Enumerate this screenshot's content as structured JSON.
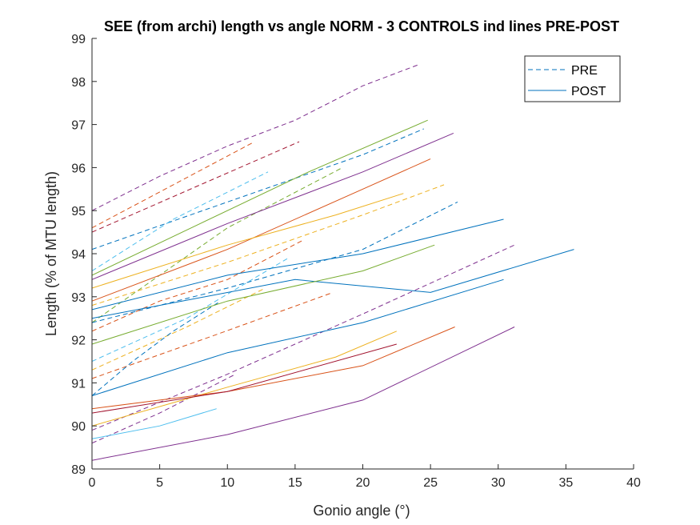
{
  "chart_data": {
    "type": "line",
    "title": "SEE (from archi) length vs angle NORM - 3 CONTROLS ind lines PRE-POST",
    "xlabel": "Gonio angle (°)",
    "ylabel": "Length (% of MTU length)",
    "xlim": [
      0,
      40
    ],
    "ylim": [
      89,
      99
    ],
    "xticks": [
      0,
      5,
      10,
      15,
      20,
      25,
      30,
      35,
      40
    ],
    "yticks": [
      89,
      90,
      91,
      92,
      93,
      94,
      95,
      96,
      97,
      98,
      99
    ],
    "grid": false,
    "legend": {
      "location": "top-right",
      "entries": [
        {
          "label": "PRE",
          "style": "dashed",
          "color": "#0072BD"
        },
        {
          "label": "POST",
          "style": "solid",
          "color": "#0072BD"
        }
      ]
    },
    "colors": [
      "#0072BD",
      "#D95319",
      "#EDB120",
      "#7E2F8E",
      "#77AC30",
      "#4DBEEE",
      "#A2142F"
    ],
    "series": [
      {
        "group": "PRE",
        "color": "#7E2F8E",
        "x": [
          0,
          5,
          10,
          15,
          20,
          24.2
        ],
        "y": [
          95.0,
          95.8,
          96.5,
          97.1,
          97.9,
          98.4
        ]
      },
      {
        "group": "PRE",
        "color": "#D95319",
        "x": [
          0,
          6,
          12
        ],
        "y": [
          94.6,
          95.6,
          96.6
        ]
      },
      {
        "group": "PRE",
        "color": "#A2142F",
        "x": [
          0,
          8,
          15.3
        ],
        "y": [
          94.5,
          95.6,
          96.6
        ]
      },
      {
        "group": "PRE",
        "color": "#0072BD",
        "x": [
          0,
          10,
          20,
          24.5
        ],
        "y": [
          94.1,
          95.2,
          96.3,
          96.9
        ]
      },
      {
        "group": "PRE",
        "color": "#77AC30",
        "x": [
          0,
          10,
          18.5
        ],
        "y": [
          92.4,
          94.6,
          96.0
        ]
      },
      {
        "group": "PRE",
        "color": "#4DBEEE",
        "x": [
          0,
          6,
          13
        ],
        "y": [
          93.6,
          94.8,
          95.9
        ]
      },
      {
        "group": "PRE",
        "color": "#EDB120",
        "x": [
          0,
          10,
          20,
          26
        ],
        "y": [
          92.8,
          93.8,
          94.9,
          95.6
        ]
      },
      {
        "group": "PRE",
        "color": "#0072BD",
        "x": [
          0,
          10,
          20,
          27
        ],
        "y": [
          92.4,
          93.2,
          94.1,
          95.2
        ]
      },
      {
        "group": "PRE",
        "color": "#D95319",
        "x": [
          0,
          5,
          10,
          15.5
        ],
        "y": [
          92.2,
          92.9,
          93.4,
          94.3
        ]
      },
      {
        "group": "PRE",
        "color": "#4DBEEE",
        "x": [
          0,
          7,
          14.5
        ],
        "y": [
          91.5,
          92.5,
          93.9
        ]
      },
      {
        "group": "PRE",
        "color": "#EDB120",
        "x": [
          0,
          7,
          12.8
        ],
        "y": [
          91.3,
          92.3,
          93.2
        ]
      },
      {
        "group": "PRE",
        "color": "#D95319",
        "x": [
          0,
          9,
          17.8
        ],
        "y": [
          91.1,
          92.1,
          93.1
        ]
      },
      {
        "group": "PRE",
        "color": "#7E2F8E",
        "x": [
          0,
          10,
          20,
          31.2
        ],
        "y": [
          89.9,
          91.2,
          92.6,
          94.2
        ]
      },
      {
        "group": "PRE",
        "color": "#0072BD",
        "x": [
          0,
          3,
          6,
          9.5
        ],
        "y": [
          90.7,
          91.5,
          92.2,
          92.9
        ]
      },
      {
        "group": "PRE",
        "color": "#7E2F8E",
        "x": [
          0,
          5,
          10.6
        ],
        "y": [
          89.6,
          90.3,
          91.2
        ]
      },
      {
        "group": "POST",
        "color": "#77AC30",
        "x": [
          0,
          8,
          16,
          24.8
        ],
        "y": [
          93.5,
          94.7,
          95.9,
          97.1
        ]
      },
      {
        "group": "POST",
        "color": "#7E2F8E",
        "x": [
          0,
          10,
          20,
          26.7
        ],
        "y": [
          93.4,
          94.7,
          95.9,
          96.8
        ]
      },
      {
        "group": "POST",
        "color": "#D95319",
        "x": [
          0,
          10,
          20,
          25
        ],
        "y": [
          92.9,
          94.1,
          95.5,
          96.2
        ]
      },
      {
        "group": "POST",
        "color": "#EDB120",
        "x": [
          0,
          10,
          18,
          23
        ],
        "y": [
          93.2,
          94.2,
          94.9,
          95.4
        ]
      },
      {
        "group": "POST",
        "color": "#0072BD",
        "x": [
          0,
          10,
          20,
          30.4
        ],
        "y": [
          92.7,
          93.5,
          94.0,
          94.8
        ]
      },
      {
        "group": "POST",
        "color": "#0072BD",
        "x": [
          0,
          15,
          25,
          35.6
        ],
        "y": [
          92.5,
          93.4,
          93.1,
          94.1
        ]
      },
      {
        "group": "POST",
        "color": "#77AC30",
        "x": [
          0,
          10,
          20,
          25.3
        ],
        "y": [
          91.9,
          92.9,
          93.6,
          94.2
        ]
      },
      {
        "group": "POST",
        "color": "#0072BD",
        "x": [
          0,
          10,
          20,
          30.4
        ],
        "y": [
          90.7,
          91.7,
          92.4,
          93.4
        ]
      },
      {
        "group": "POST",
        "color": "#EDB120",
        "x": [
          0,
          10,
          18,
          22.5
        ],
        "y": [
          90.0,
          90.9,
          91.6,
          92.2
        ]
      },
      {
        "group": "POST",
        "color": "#D95319",
        "x": [
          0,
          10,
          20,
          26.8
        ],
        "y": [
          90.4,
          90.8,
          91.4,
          92.3
        ]
      },
      {
        "group": "POST",
        "color": "#A2142F",
        "x": [
          0,
          10,
          22.5
        ],
        "y": [
          90.3,
          90.8,
          91.9
        ]
      },
      {
        "group": "POST",
        "color": "#4DBEEE",
        "x": [
          0,
          5,
          9.2
        ],
        "y": [
          89.7,
          90.0,
          90.4
        ]
      },
      {
        "group": "POST",
        "color": "#7E2F8E",
        "x": [
          0,
          10,
          20,
          31.2
        ],
        "y": [
          89.2,
          89.8,
          90.6,
          92.3
        ]
      }
    ]
  }
}
